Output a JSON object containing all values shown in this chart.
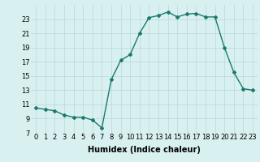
{
  "x": [
    0,
    1,
    2,
    3,
    4,
    5,
    6,
    7,
    8,
    9,
    10,
    11,
    12,
    13,
    14,
    15,
    16,
    17,
    18,
    19,
    20,
    21,
    22,
    23
  ],
  "y": [
    10.5,
    10.3,
    10.1,
    9.5,
    9.2,
    9.2,
    8.8,
    7.7,
    14.5,
    17.2,
    18.0,
    21.0,
    23.2,
    23.5,
    24.0,
    23.3,
    23.7,
    23.8,
    23.3,
    23.3,
    19.0,
    15.5,
    13.2,
    13.0
  ],
  "xlabel": "Humidex (Indice chaleur)",
  "xlim": [
    -0.5,
    23.5
  ],
  "ylim": [
    7,
    25
  ],
  "yticks": [
    7,
    9,
    11,
    13,
    15,
    17,
    19,
    21,
    23
  ],
  "xticks": [
    0,
    1,
    2,
    3,
    4,
    5,
    6,
    7,
    8,
    9,
    10,
    11,
    12,
    13,
    14,
    15,
    16,
    17,
    18,
    19,
    20,
    21,
    22,
    23
  ],
  "line_color": "#1a7a6e",
  "marker": "D",
  "marker_size": 2.0,
  "bg_color": "#d8f0f0",
  "grid_color": "#b8d8d8",
  "xlabel_fontsize": 7,
  "tick_fontsize": 6,
  "line_width": 1.0
}
